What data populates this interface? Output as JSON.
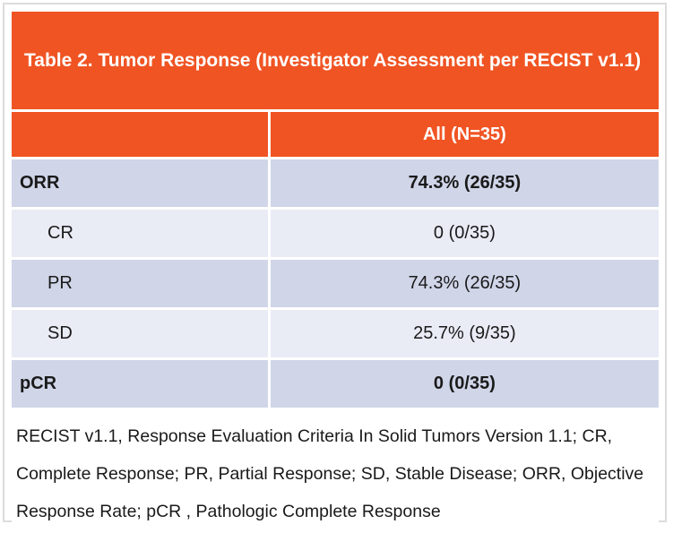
{
  "figure": {
    "title": "Table 2. Tumor Response (Investigator Assessment per RECIST v1.1)"
  },
  "table": {
    "header": {
      "metric_label": "",
      "all_label": "All (N=35)"
    },
    "rows": [
      {
        "label": "ORR",
        "value": "74.3% (26/35)"
      },
      {
        "label": "CR",
        "value": "0 (0/35)"
      },
      {
        "label": "PR",
        "value": "74.3% (26/35)"
      },
      {
        "label": "SD",
        "value": "25.7% (9/35)"
      },
      {
        "label": "pCR",
        "value": "0 (0/35)"
      }
    ],
    "footnote": "RECIST v1.1, Response Evaluation Criteria In Solid Tumors Version 1.1; CR, Complete Response; PR, Partial Response; SD, Stable Disease; ORR, Objective Response Rate; pCR , Pathologic Complete Response"
  },
  "colors": {
    "accent_orange": "#F05423",
    "row_lavender": "#D0D5E8",
    "row_light": "#E9EBF5",
    "text_dark": "#1A1A1A",
    "header_text": "#FFFFFF",
    "frame_border": "#DCDCDC"
  }
}
